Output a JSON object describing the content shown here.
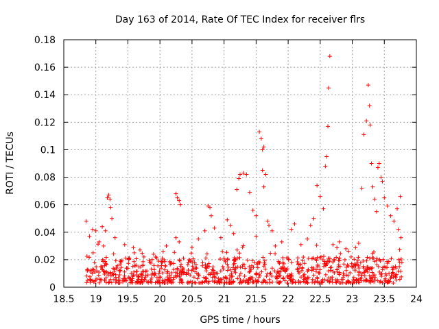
{
  "chart_data": {
    "type": "scatter",
    "title": "Day 163 of 2014, Rate Of TEC Index for receiver flrs",
    "xlabel": "GPS time / hours",
    "ylabel": "ROTI / TECUs",
    "xlim": [
      18.5,
      24
    ],
    "ylim": [
      0,
      0.18
    ],
    "x_ticks": [
      "18.5",
      "19",
      "19.5",
      "20",
      "20.5",
      "21",
      "21.5",
      "22",
      "22.5",
      "23",
      "23.5",
      "24"
    ],
    "y_ticks": [
      "0",
      "0.02",
      "0.04",
      "0.06",
      "0.08",
      "0.1",
      "0.12",
      "0.14",
      "0.16",
      "0.18"
    ],
    "grid": true,
    "marker": "+",
    "color": "#ff0000",
    "series": [
      {
        "name": "ROTI",
        "points": [
          [
            18.85,
            0.048
          ],
          [
            18.9,
            0.037
          ],
          [
            18.95,
            0.042
          ],
          [
            19.0,
            0.041
          ],
          [
            19.05,
            0.033
          ],
          [
            19.1,
            0.044
          ],
          [
            19.15,
            0.041
          ],
          [
            19.18,
            0.065
          ],
          [
            19.2,
            0.067
          ],
          [
            19.22,
            0.064
          ],
          [
            19.23,
            0.058
          ],
          [
            19.25,
            0.05
          ],
          [
            19.12,
            0.03
          ],
          [
            19.3,
            0.036
          ],
          [
            19.45,
            0.031
          ],
          [
            19.6,
            0.025
          ],
          [
            19.75,
            0.022
          ],
          [
            19.9,
            0.024
          ],
          [
            20.05,
            0.026
          ],
          [
            20.1,
            0.03
          ],
          [
            20.25,
            0.068
          ],
          [
            20.27,
            0.065
          ],
          [
            20.3,
            0.063
          ],
          [
            20.32,
            0.06
          ],
          [
            20.25,
            0.036
          ],
          [
            20.3,
            0.033
          ],
          [
            20.5,
            0.029
          ],
          [
            20.6,
            0.035
          ],
          [
            20.7,
            0.041
          ],
          [
            20.75,
            0.059
          ],
          [
            20.78,
            0.058
          ],
          [
            20.8,
            0.052
          ],
          [
            20.85,
            0.043
          ],
          [
            20.95,
            0.036
          ],
          [
            21.05,
            0.049
          ],
          [
            21.1,
            0.045
          ],
          [
            21.15,
            0.039
          ],
          [
            21.2,
            0.071
          ],
          [
            21.23,
            0.079
          ],
          [
            21.25,
            0.082
          ],
          [
            21.3,
            0.083
          ],
          [
            21.35,
            0.082
          ],
          [
            21.4,
            0.069
          ],
          [
            21.45,
            0.056
          ],
          [
            21.5,
            0.052
          ],
          [
            21.55,
            0.113
          ],
          [
            21.58,
            0.108
          ],
          [
            21.6,
            0.1
          ],
          [
            21.62,
            0.102
          ],
          [
            21.6,
            0.085
          ],
          [
            21.65,
            0.082
          ],
          [
            21.62,
            0.073
          ],
          [
            21.68,
            0.048
          ],
          [
            21.7,
            0.045
          ],
          [
            21.75,
            0.041
          ],
          [
            21.5,
            0.037
          ],
          [
            21.8,
            0.03
          ],
          [
            21.9,
            0.033
          ],
          [
            22.05,
            0.042
          ],
          [
            22.1,
            0.046
          ],
          [
            22.2,
            0.031
          ],
          [
            22.3,
            0.035
          ],
          [
            22.35,
            0.045
          ],
          [
            22.4,
            0.05
          ],
          [
            22.45,
            0.074
          ],
          [
            22.5,
            0.066
          ],
          [
            22.55,
            0.057
          ],
          [
            22.58,
            0.088
          ],
          [
            22.6,
            0.095
          ],
          [
            22.62,
            0.117
          ],
          [
            22.63,
            0.145
          ],
          [
            22.65,
            0.168
          ],
          [
            22.7,
            0.031
          ],
          [
            22.8,
            0.033
          ],
          [
            22.9,
            0.028
          ],
          [
            23.1,
            0.032
          ],
          [
            23.15,
            0.072
          ],
          [
            23.18,
            0.111
          ],
          [
            23.22,
            0.121
          ],
          [
            23.25,
            0.147
          ],
          [
            23.27,
            0.132
          ],
          [
            23.28,
            0.118
          ],
          [
            23.3,
            0.09
          ],
          [
            23.32,
            0.073
          ],
          [
            23.35,
            0.064
          ],
          [
            23.38,
            0.055
          ],
          [
            23.4,
            0.087
          ],
          [
            23.42,
            0.09
          ],
          [
            23.45,
            0.08
          ],
          [
            23.47,
            0.077
          ],
          [
            23.5,
            0.065
          ],
          [
            23.55,
            0.059
          ],
          [
            23.6,
            0.052
          ],
          [
            23.65,
            0.048
          ],
          [
            23.7,
            0.057
          ],
          [
            23.75,
            0.066
          ],
          [
            23.72,
            0.042
          ],
          [
            23.76,
            0.036
          ]
        ]
      }
    ],
    "dense_band": {
      "note": "dense cluster of low ROTI values across the whole time range",
      "x_start": 18.85,
      "x_end": 23.78,
      "y_min": 0.003,
      "y_max": 0.022,
      "count": 900
    }
  }
}
